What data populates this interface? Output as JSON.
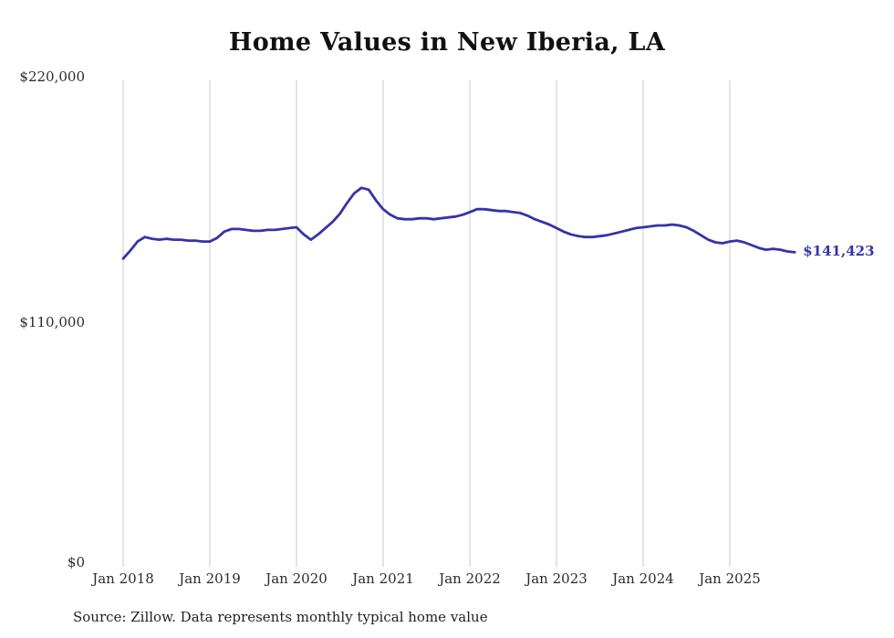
{
  "page": {
    "background": "#ffffff"
  },
  "chart": {
    "end_label": "$141,423",
    "source_note": "Source: Zillow. Data represents monthly typical home value",
    "colors": {
      "line": "#3433a8",
      "gridline": "#c9c9c9",
      "title_text": "#111111",
      "axis_text": "#2b2b2b",
      "source_text": "#1f1f1f"
    }
  },
  "chart_data": {
    "type": "line",
    "title": "Home Values in New Iberia, LA",
    "xlabel": "",
    "ylabel": "",
    "x_start": "Jan 2018",
    "x_interval": "monthly",
    "x_tick_labels": [
      "Jan 2018",
      "Jan 2019",
      "Jan 2020",
      "Jan 2021",
      "Jan 2022",
      "Jan 2023",
      "Jan 2024",
      "Jan 2025"
    ],
    "y_tick_labels": [
      "$220,000",
      "$110,000",
      "$0"
    ],
    "y_ticks": [
      220000,
      110000,
      0
    ],
    "ylim": [
      0,
      220000
    ],
    "grid": "vertical",
    "legend": "none",
    "end_value": 141423,
    "end_value_label": "$141,423",
    "values": [
      138600,
      142200,
      146300,
      148300,
      147500,
      147100,
      147500,
      147100,
      147100,
      146700,
      146700,
      146300,
      146300,
      147900,
      150700,
      151900,
      151900,
      151500,
      151100,
      151100,
      151500,
      151500,
      151900,
      152300,
      152700,
      149500,
      147100,
      149500,
      152300,
      155100,
      158700,
      163600,
      168000,
      170400,
      169600,
      164800,
      160800,
      158300,
      156700,
      156300,
      156300,
      156700,
      156700,
      156300,
      156700,
      157100,
      157500,
      158300,
      159500,
      160800,
      160800,
      160400,
      160000,
      160000,
      159500,
      159100,
      157900,
      156300,
      155100,
      153900,
      152300,
      150700,
      149500,
      148700,
      148300,
      148300,
      148700,
      149100,
      149900,
      150700,
      151500,
      152300,
      152700,
      153100,
      153500,
      153500,
      153900,
      153500,
      152700,
      151100,
      149100,
      147100,
      145900,
      145500,
      146300,
      146700,
      145900,
      144700,
      143400,
      142600,
      143000,
      142600,
      141800,
      141423
    ]
  }
}
